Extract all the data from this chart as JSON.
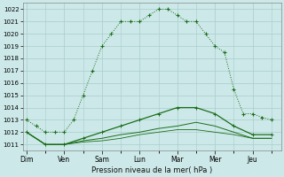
{
  "xlabel": "Pression niveau de la mer( hPa )",
  "background_color": "#cce8e8",
  "grid_color": "#aacccc",
  "line_color": "#1a6e1a",
  "ylim": [
    1010.5,
    1022.5
  ],
  "yticks": [
    1011,
    1012,
    1013,
    1014,
    1015,
    1016,
    1017,
    1018,
    1019,
    1020,
    1021,
    1022
  ],
  "day_labels": [
    "Dim",
    "Ven",
    "Sam",
    "Lun",
    "Mar",
    "Mer",
    "Jeu"
  ],
  "day_positions": [
    0,
    2,
    4,
    6,
    8,
    10,
    12
  ],
  "xlim": [
    -0.2,
    13.5
  ],
  "upper_line_x": [
    0,
    0.5,
    1,
    1.5,
    2,
    2.5,
    3,
    3.5,
    4,
    4.5,
    5,
    5.5,
    6,
    6.5,
    7,
    7.5,
    8,
    8.5,
    9,
    9.5,
    10,
    10.5,
    11,
    11.5,
    12,
    12.5,
    13
  ],
  "upper_line_y": [
    1013,
    1012.5,
    1012,
    1012,
    1012,
    1013,
    1015,
    1017,
    1019,
    1020,
    1021,
    1021,
    1021,
    1021.5,
    1022,
    1022,
    1021.5,
    1021,
    1021,
    1020,
    1019,
    1018.5,
    1015.5,
    1013.5,
    1013.5,
    1013.2,
    1013
  ],
  "mid_line_x": [
    0,
    1,
    2,
    3,
    4,
    5,
    6,
    7,
    8,
    9,
    10,
    11,
    12,
    13
  ],
  "mid_line_y": [
    1012,
    1011,
    1011,
    1011.5,
    1012,
    1012.5,
    1013,
    1013.5,
    1014,
    1014,
    1013.5,
    1012.5,
    1011.8,
    1011.8
  ],
  "low_line1_x": [
    0,
    1,
    2,
    3,
    4,
    5,
    6,
    7,
    8,
    9,
    10,
    11,
    12,
    13
  ],
  "low_line1_y": [
    1012,
    1011,
    1011,
    1011.3,
    1011.5,
    1011.8,
    1012,
    1012.3,
    1012.5,
    1012.8,
    1012.5,
    1012,
    1011.5,
    1011.5
  ],
  "low_line2_x": [
    0,
    1,
    2,
    3,
    4,
    5,
    6,
    7,
    8,
    9,
    10,
    11,
    12,
    13
  ],
  "low_line2_y": [
    1012,
    1011,
    1011,
    1011.2,
    1011.3,
    1011.5,
    1011.8,
    1012,
    1012.2,
    1012.2,
    1012,
    1011.8,
    1011.5,
    1011.5
  ]
}
